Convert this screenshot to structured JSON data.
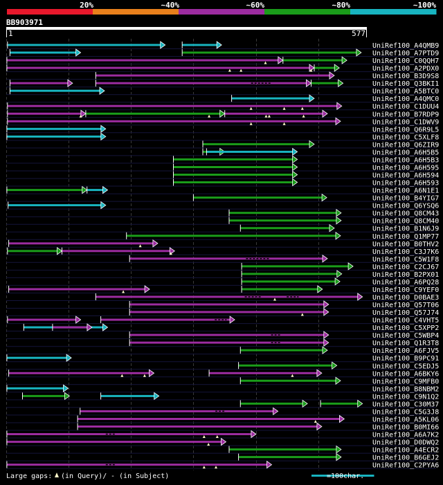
{
  "legend": {
    "labels": [
      "20%",
      "~40%",
      "~60%",
      "~80%",
      "~100%"
    ],
    "colors": [
      "#e8182c",
      "#e8801c",
      "#9c2ca0",
      "#1a9c1a",
      "#18b4c0"
    ]
  },
  "query": {
    "id": "BB903971",
    "start_label": "1",
    "end_label": "577",
    "length": 577
  },
  "footer": {
    "gaps_text": "Large gaps: ",
    "query_gap_text": "(in Query)/",
    "subject_gap_text": "- (in Subject)",
    "scale_text": "=100char."
  },
  "chart_data": {
    "type": "alignment-map",
    "query_length": 577,
    "x_range": [
      1,
      577
    ],
    "scale_units_per_bar": 100,
    "grid_positions": [
      1,
      100,
      200,
      300,
      400,
      500
    ],
    "identity_colors": {
      "p20": "#e8182c",
      "p40": "#e8801c",
      "p60": "#9c2ca0",
      "p80": "#1a9c1a",
      "p100": "#18b4c0"
    },
    "hits": [
      {
        "id": "UniRef100_A4QMB9",
        "segs": [
          [
            3,
            255,
            "p100"
          ],
          [
            282,
            345,
            "p100"
          ]
        ],
        "qgaps": [],
        "sgaps": []
      },
      {
        "id": "UniRef100_A7PTD9",
        "segs": [
          [
            7,
            120,
            "p100"
          ],
          [
            282,
            568,
            "p80"
          ]
        ],
        "qgaps": [],
        "sgaps": []
      },
      {
        "id": "UniRef100_C0QQH7",
        "segs": [
          [
            2,
            443,
            "p60"
          ],
          [
            443,
            545,
            "p80"
          ]
        ],
        "qgaps": [
          415
        ],
        "sgaps": []
      },
      {
        "id": "UniRef100_A2PDX0",
        "segs": [
          [
            2,
            493,
            "p60"
          ],
          [
            493,
            533,
            "p80"
          ]
        ],
        "qgaps": [
          358,
          376,
          488
        ],
        "sgaps": []
      },
      {
        "id": "UniRef100_B3D9S8",
        "segs": [
          [
            144,
            525,
            "p60"
          ]
        ],
        "qgaps": [],
        "sgaps": []
      },
      {
        "id": "UniRef100_Q3BKI1",
        "segs": [
          [
            7,
            107,
            "p60"
          ],
          [
            144,
            488,
            "p60"
          ],
          [
            488,
            539,
            "p80"
          ]
        ],
        "qgaps": [],
        "sgaps": [
          [
            392,
            423
          ]
        ]
      },
      {
        "id": "UniRef100_A5BTC0",
        "segs": [
          [
            7,
            158,
            "p100"
          ]
        ],
        "qgaps": [],
        "sgaps": []
      },
      {
        "id": "UniRef100_A4QMC0",
        "segs": [
          [
            361,
            493,
            "p100"
          ]
        ],
        "qgaps": [],
        "sgaps": []
      },
      {
        "id": "UniRef100_C1DUU4",
        "segs": [
          [
            3,
            537,
            "p60"
          ]
        ],
        "qgaps": [
          392,
          445,
          474
        ],
        "sgaps": []
      },
      {
        "id": "UniRef100_B7RDP9",
        "segs": [
          [
            3,
            128,
            "p60"
          ],
          [
            128,
            350,
            "p80"
          ],
          [
            350,
            514,
            "p60"
          ]
        ],
        "qgaps": [
          120,
          325,
          416,
          421,
          476
        ],
        "sgaps": []
      },
      {
        "id": "UniRef100_C1DWV9",
        "segs": [
          [
            3,
            535,
            "p60"
          ]
        ],
        "qgaps": [
          392,
          445
        ],
        "sgaps": []
      },
      {
        "id": "UniRef100_Q6R9L5",
        "segs": [
          [
            2,
            160,
            "p100"
          ]
        ],
        "qgaps": [],
        "sgaps": []
      },
      {
        "id": "UniRef100_C5XLF8",
        "segs": [
          [
            2,
            160,
            "p100"
          ]
        ],
        "qgaps": [],
        "sgaps": []
      },
      {
        "id": "UniRef100_Q6ZIR9",
        "segs": [
          [
            315,
            493,
            "p80"
          ]
        ],
        "qgaps": [],
        "sgaps": []
      },
      {
        "id": "UniRef100_A6H5B5",
        "segs": [
          [
            315,
            350,
            "p80"
          ],
          [
            321,
            466,
            "p100"
          ]
        ],
        "qgaps": [],
        "sgaps": []
      },
      {
        "id": "UniRef100_A6H5B3",
        "segs": [
          [
            268,
            466,
            "p80"
          ]
        ],
        "qgaps": [],
        "sgaps": []
      },
      {
        "id": "UniRef100_A6H595",
        "segs": [
          [
            268,
            466,
            "p80"
          ]
        ],
        "qgaps": [],
        "sgaps": []
      },
      {
        "id": "UniRef100_A6H594",
        "segs": [
          [
            268,
            466,
            "p80"
          ]
        ],
        "qgaps": [],
        "sgaps": []
      },
      {
        "id": "UniRef100_A6H593",
        "segs": [
          [
            268,
            466,
            "p80"
          ]
        ],
        "qgaps": [],
        "sgaps": []
      },
      {
        "id": "UniRef100_A6N1E1",
        "segs": [
          [
            2,
            130,
            "p80"
          ],
          [
            130,
            163,
            "p100"
          ]
        ],
        "qgaps": [],
        "sgaps": []
      },
      {
        "id": "UniRef100_B4YIG7",
        "segs": [
          [
            300,
            513,
            "p80"
          ]
        ],
        "qgaps": [],
        "sgaps": []
      },
      {
        "id": "UniRef100_Q6YSQ6",
        "segs": [
          [
            4,
            160,
            "p100"
          ]
        ],
        "qgaps": [],
        "sgaps": []
      },
      {
        "id": "UniRef100_Q8CM43",
        "segs": [
          [
            357,
            536,
            "p80"
          ]
        ],
        "qgaps": [],
        "sgaps": []
      },
      {
        "id": "UniRef100_Q8CM40",
        "segs": [
          [
            357,
            536,
            "p80"
          ]
        ],
        "qgaps": [],
        "sgaps": []
      },
      {
        "id": "UniRef100_B1N6J9",
        "segs": [
          [
            375,
            525,
            "p80"
          ]
        ],
        "qgaps": [],
        "sgaps": []
      },
      {
        "id": "UniRef100_Q1MP77",
        "segs": [
          [
            193,
            535,
            "p80"
          ]
        ],
        "qgaps": [],
        "sgaps": []
      },
      {
        "id": "UniRef100_B0THV2",
        "segs": [
          [
            5,
            243,
            "p60"
          ]
        ],
        "qgaps": [
          215
        ],
        "sgaps": []
      },
      {
        "id": "UniRef100_C3J7K6",
        "segs": [
          [
            3,
            90,
            "p80"
          ],
          [
            90,
            270,
            "p60"
          ]
        ],
        "qgaps": [
          264
        ],
        "sgaps": []
      },
      {
        "id": "UniRef100_C5W1F8",
        "segs": [
          [
            198,
            514,
            "p60"
          ]
        ],
        "qgaps": [],
        "sgaps": [
          [
            384,
            421
          ]
        ]
      },
      {
        "id": "UniRef100_C2CJ67",
        "segs": [
          [
            377,
            555,
            "p80"
          ]
        ],
        "qgaps": [],
        "sgaps": []
      },
      {
        "id": "UniRef100_B2PX01",
        "segs": [
          [
            377,
            537,
            "p80"
          ]
        ],
        "qgaps": [],
        "sgaps": []
      },
      {
        "id": "UniRef100_A6PQ28",
        "segs": [
          [
            377,
            534,
            "p80"
          ]
        ],
        "qgaps": [],
        "sgaps": []
      },
      {
        "id": "UniRef100_C9YEF0",
        "segs": [
          [
            5,
            230,
            "p60"
          ],
          [
            377,
            506,
            "p80"
          ]
        ],
        "qgaps": [
          188
        ],
        "sgaps": []
      },
      {
        "id": "UniRef100_D0BAE3",
        "segs": [
          [
            144,
            570,
            "p60"
          ]
        ],
        "qgaps": [
          430
        ],
        "sgaps": [
          [
            382,
            409
          ],
          [
            449,
            468
          ]
        ]
      },
      {
        "id": "UniRef100_Q57T06",
        "segs": [
          [
            198,
            516,
            "p60"
          ]
        ],
        "qgaps": [],
        "sgaps": []
      },
      {
        "id": "UniRef100_Q57J74",
        "segs": [
          [
            198,
            516,
            "p60"
          ]
        ],
        "qgaps": [
          474
        ],
        "sgaps": []
      },
      {
        "id": "UniRef100_C4VHT5",
        "segs": [
          [
            3,
            120,
            "p60"
          ],
          [
            152,
            366,
            "p60"
          ]
        ],
        "qgaps": [],
        "sgaps": [
          [
            334,
            353
          ]
        ]
      },
      {
        "id": "UniRef100_C5XPP2",
        "segs": [
          [
            29,
            163,
            "p100"
          ],
          [
            75,
            138,
            "p60"
          ]
        ],
        "qgaps": [],
        "sgaps": []
      },
      {
        "id": "UniRef100_C5WBP4",
        "segs": [
          [
            198,
            516,
            "p60"
          ]
        ],
        "qgaps": [],
        "sgaps": [
          [
            424,
            439
          ]
        ]
      },
      {
        "id": "UniRef100_Q1R3T8",
        "segs": [
          [
            198,
            516,
            "p60"
          ]
        ],
        "qgaps": [],
        "sgaps": [
          [
            424,
            439
          ]
        ]
      },
      {
        "id": "UniRef100_A6FJV5",
        "segs": [
          [
            375,
            514,
            "p80"
          ]
        ],
        "qgaps": [],
        "sgaps": []
      },
      {
        "id": "UniRef100_B9PC91",
        "segs": [
          [
            2,
            105,
            "p100"
          ]
        ],
        "qgaps": [],
        "sgaps": []
      },
      {
        "id": "UniRef100_C5EDJ5",
        "segs": [
          [
            372,
            529,
            "p80"
          ]
        ],
        "qgaps": [],
        "sgaps": []
      },
      {
        "id": "UniRef100_A6BKY6",
        "segs": [
          [
            5,
            237,
            "p60"
          ],
          [
            325,
            505,
            "p60"
          ]
        ],
        "qgaps": [
          186,
          222,
          458
        ],
        "sgaps": []
      },
      {
        "id": "UniRef100_C9MFB0",
        "segs": [
          [
            375,
            535,
            "p80"
          ]
        ],
        "qgaps": [],
        "sgaps": []
      },
      {
        "id": "UniRef100_B8NBM2",
        "segs": [
          [
            2,
            100,
            "p100"
          ]
        ],
        "qgaps": [],
        "sgaps": []
      },
      {
        "id": "UniRef100_C9N1Q2",
        "segs": [
          [
            27,
            102,
            "p80"
          ],
          [
            152,
            245,
            "p100"
          ]
        ],
        "qgaps": [],
        "sgaps": []
      },
      {
        "id": "UniRef100_C30M37",
        "segs": [
          [
            375,
            482,
            "p80"
          ],
          [
            503,
            570,
            "p80"
          ]
        ],
        "qgaps": [],
        "sgaps": []
      },
      {
        "id": "UniRef100_C5G3J8",
        "segs": [
          [
            119,
            435,
            "p60"
          ]
        ],
        "qgaps": [],
        "sgaps": [
          [
            335,
            350
          ]
        ]
      },
      {
        "id": "UniRef100_A5KL06",
        "segs": [
          [
            115,
            541,
            "p60"
          ]
        ],
        "qgaps": [
          495
        ],
        "sgaps": []
      },
      {
        "id": "UniRef100_B0MI66",
        "segs": [
          [
            115,
            505,
            "p60"
          ]
        ],
        "qgaps": [],
        "sgaps": []
      },
      {
        "id": "UniRef100_A6A7K2",
        "segs": [
          [
            2,
            400,
            "p60"
          ]
        ],
        "qgaps": [
          317,
          338
        ],
        "sgaps": [
          [
            160,
            175
          ]
        ]
      },
      {
        "id": "UniRef100_D0DWQ2",
        "segs": [
          [
            2,
            352,
            "p60"
          ]
        ],
        "qgaps": [
          324
        ],
        "sgaps": []
      },
      {
        "id": "UniRef100_A4ECR2",
        "segs": [
          [
            357,
            536,
            "p80"
          ]
        ],
        "qgaps": [],
        "sgaps": []
      },
      {
        "id": "UniRef100_B6GEJ2",
        "segs": [
          [
            372,
            536,
            "p80"
          ]
        ],
        "qgaps": [],
        "sgaps": []
      },
      {
        "id": "UniRef100_C2PYA6",
        "segs": [
          [
            2,
            425,
            "p60"
          ]
        ],
        "qgaps": [
          317,
          336
        ],
        "sgaps": [
          [
            160,
            175
          ]
        ]
      }
    ]
  }
}
